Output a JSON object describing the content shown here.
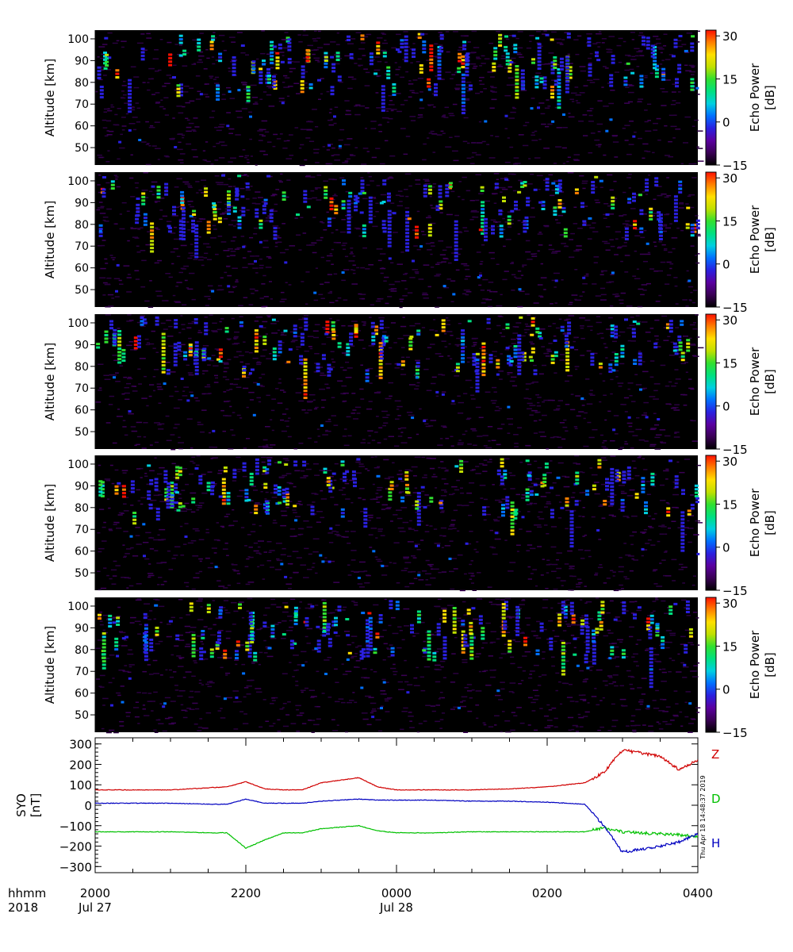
{
  "radar_panels": {
    "ylabel": "Altitude [km]",
    "ylim": [
      42,
      104
    ],
    "yticks": [
      "50",
      "60",
      "70",
      "80",
      "90",
      "100"
    ],
    "colorbar": {
      "label_line1": "Echo Power",
      "label_line2": "[dB]",
      "range": [
        -15,
        32
      ],
      "ticks": [
        "30",
        "15",
        "0",
        "−15"
      ],
      "colors": [
        "#000000",
        "#3a0055",
        "#5a00a0",
        "#2a20e0",
        "#0070ff",
        "#00d0e0",
        "#00e080",
        "#30e030",
        "#c0e000",
        "#ffe000",
        "#ff8000",
        "#ff1000"
      ]
    },
    "count": 5
  },
  "magnetometer": {
    "ylabel_line1": "SYO",
    "ylabel_line2": "[nT]",
    "ylim": [
      -330,
      330
    ],
    "yticks": [
      "300",
      "200",
      "100",
      "0",
      "−100",
      "−200",
      "−300"
    ],
    "legend": {
      "z": {
        "label": "Z",
        "color": "#d00000"
      },
      "d": {
        "label": "D",
        "color": "#00c000"
      },
      "h": {
        "label": "H",
        "color": "#0000c0"
      }
    },
    "timestamp": "Thu Apr 18 14:48:37 2019"
  },
  "time_axis": {
    "row1_label": "hhmm",
    "row2_label": "2018",
    "ticks": [
      {
        "time": "2000",
        "date": "Jul 27"
      },
      {
        "time": "2200",
        "date": ""
      },
      {
        "time": "0000",
        "date": "Jul 28"
      },
      {
        "time": "0200",
        "date": ""
      },
      {
        "time": "0400",
        "date": ""
      }
    ]
  },
  "chart_data": {
    "type": "line",
    "title": "",
    "xlabel": "hhmm",
    "ylabel": "SYO [nT]",
    "x_hours": [
      0,
      0.5,
      1.0,
      1.5,
      1.75,
      2.0,
      2.25,
      2.5,
      2.75,
      3.0,
      3.5,
      3.75,
      4.0,
      4.5,
      5.0,
      5.5,
      6.0,
      6.5,
      6.75,
      7.0,
      7.5,
      7.75,
      8.0
    ],
    "x_ticks": [
      "2000",
      "2200",
      "0000",
      "0200",
      "0400"
    ],
    "ylim": [
      -330,
      330
    ],
    "series": [
      {
        "name": "Z",
        "color": "#d00000",
        "values": [
          75,
          75,
          75,
          85,
          90,
          115,
          80,
          75,
          75,
          110,
          135,
          90,
          75,
          75,
          75,
          80,
          90,
          110,
          160,
          270,
          240,
          175,
          220
        ]
      },
      {
        "name": "D",
        "color": "#00c000",
        "values": [
          -130,
          -130,
          -130,
          -135,
          -135,
          -210,
          -170,
          -135,
          -135,
          -115,
          -100,
          -125,
          -135,
          -135,
          -130,
          -130,
          -130,
          -130,
          -110,
          -130,
          -140,
          -145,
          -155
        ]
      },
      {
        "name": "H",
        "color": "#0000c0",
        "values": [
          10,
          10,
          10,
          5,
          5,
          30,
          10,
          10,
          10,
          20,
          30,
          25,
          25,
          25,
          20,
          20,
          15,
          5,
          -100,
          -230,
          -200,
          -180,
          -140
        ]
      }
    ]
  }
}
